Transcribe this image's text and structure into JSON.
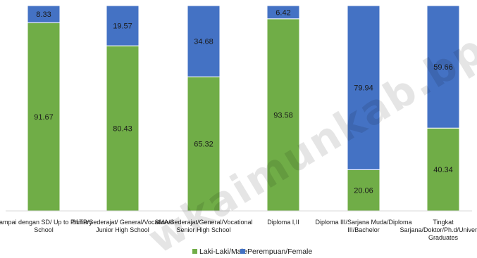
{
  "watermark": "wkaimunkab.bps.go.id",
  "chart_data": {
    "type": "bar",
    "stacked": true,
    "percent_stacked": true,
    "categories": [
      [
        "Sampai dengan SD/ Up to Primary",
        "School"
      ],
      [
        "SLTP/Sederajat/ General/Vocational",
        "Junior High School"
      ],
      [
        "SMA/Sederajat/General/Vocational",
        "Senior High School"
      ],
      [
        "Diploma I,II"
      ],
      [
        "Diploma III/Sarjana Muda/Diploma",
        "III/Bachelor"
      ],
      [
        "Tingkat",
        "Sarjana/Doktor/Ph.d/University",
        "Graduates"
      ]
    ],
    "series": [
      {
        "name": "Laki-Laki/Male",
        "color": "#70ad47",
        "values": [
          91.67,
          80.43,
          65.32,
          93.58,
          20.06,
          40.34
        ]
      },
      {
        "name": "Perempuan/Female",
        "color": "#4472c4",
        "values": [
          8.33,
          19.57,
          34.68,
          6.42,
          79.94,
          59.66
        ]
      }
    ],
    "ylim": [
      0,
      100
    ],
    "grid": false,
    "legend_position": "bottom"
  }
}
